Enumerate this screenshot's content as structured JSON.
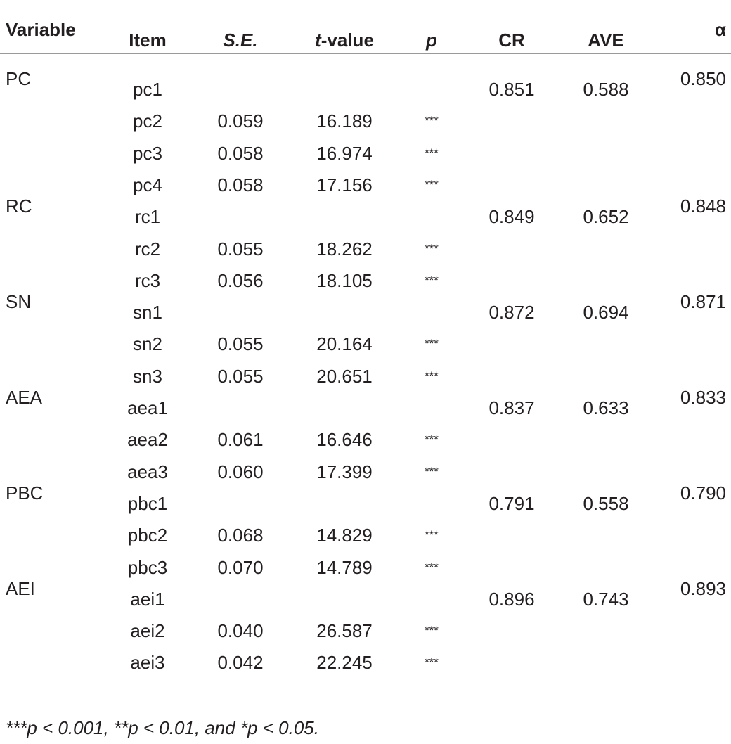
{
  "table": {
    "header": [
      "Variable",
      "Item",
      "S.E.",
      [
        "t",
        "-value"
      ],
      "p",
      "CR",
      "AVE",
      "α"
    ],
    "rows": [
      {
        "variable": "PC",
        "item": "pc1",
        "cr": "0.851",
        "ave": "0.588",
        "alpha": "0.850"
      },
      {
        "item": "pc2",
        "se": "0.059",
        "t": "16.189",
        "p": "***"
      },
      {
        "item": "pc3",
        "se": "0.058",
        "t": "16.974",
        "p": "***"
      },
      {
        "item": "pc4",
        "se": "0.058",
        "t": "17.156",
        "p": "***"
      },
      {
        "variable": "RC",
        "item": "rc1",
        "cr": "0.849",
        "ave": "0.652",
        "alpha": "0.848"
      },
      {
        "item": "rc2",
        "se": "0.055",
        "t": "18.262",
        "p": "***"
      },
      {
        "item": "rc3",
        "se": "0.056",
        "t": "18.105",
        "p": "***"
      },
      {
        "variable": "SN",
        "item": "sn1",
        "cr": "0.872",
        "ave": "0.694",
        "alpha": "0.871"
      },
      {
        "item": "sn2",
        "se": "0.055",
        "t": "20.164",
        "p": "***"
      },
      {
        "item": "sn3",
        "se": "0.055",
        "t": "20.651",
        "p": "***"
      },
      {
        "variable": "AEA",
        "item": "aea1",
        "cr": "0.837",
        "ave": "0.633",
        "alpha": "0.833"
      },
      {
        "item": "aea2",
        "se": "0.061",
        "t": "16.646",
        "p": "***"
      },
      {
        "item": "aea3",
        "se": "0.060",
        "t": "17.399",
        "p": "***"
      },
      {
        "variable": "PBC",
        "item": "pbc1",
        "cr": "0.791",
        "ave": "0.558",
        "alpha": "0.790"
      },
      {
        "item": "pbc2",
        "se": "0.068",
        "t": "14.829",
        "p": "***"
      },
      {
        "item": "pbc3",
        "se": "0.070",
        "t": "14.789",
        "p": "***"
      },
      {
        "variable": "AEI",
        "item": "aei1",
        "cr": "0.896",
        "ave": "0.743",
        "alpha": "0.893"
      },
      {
        "item": "aei2",
        "se": "0.040",
        "t": "26.587",
        "p": "***"
      },
      {
        "item": "aei3",
        "se": "0.042",
        "t": "22.245",
        "p": "***"
      }
    ],
    "footnote": "***p < 0.001, **p < 0.01, and *p < 0.05."
  }
}
